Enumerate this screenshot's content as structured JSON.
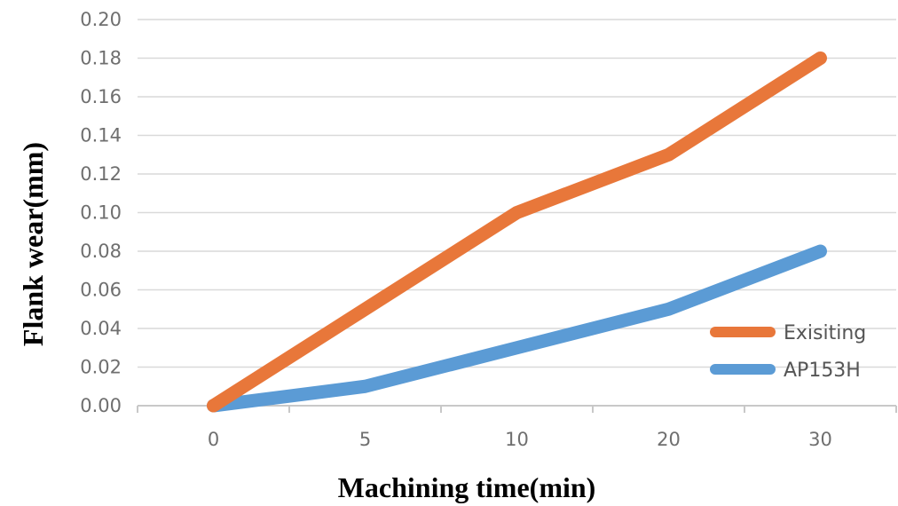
{
  "chart_data": {
    "type": "line",
    "categories": [
      "0",
      "5",
      "10",
      "20",
      "30"
    ],
    "series": [
      {
        "name": "Exisiting",
        "values": [
          0.0,
          0.05,
          0.1,
          0.13,
          0.18
        ],
        "color": "#e8773a"
      },
      {
        "name": "AP153H",
        "values": [
          0.0,
          0.01,
          0.03,
          0.05,
          0.08
        ],
        "color": "#5b9bd5"
      }
    ],
    "y_ticks": [
      "0.00",
      "0.02",
      "0.04",
      "0.06",
      "0.08",
      "0.10",
      "0.12",
      "0.14",
      "0.16",
      "0.18",
      "0.20"
    ],
    "ylim": [
      0,
      0.2
    ],
    "xlabel": "Machining time(min)",
    "ylabel": "Flank wear(mm)",
    "grid": true,
    "legend_position": "bottom-right"
  }
}
